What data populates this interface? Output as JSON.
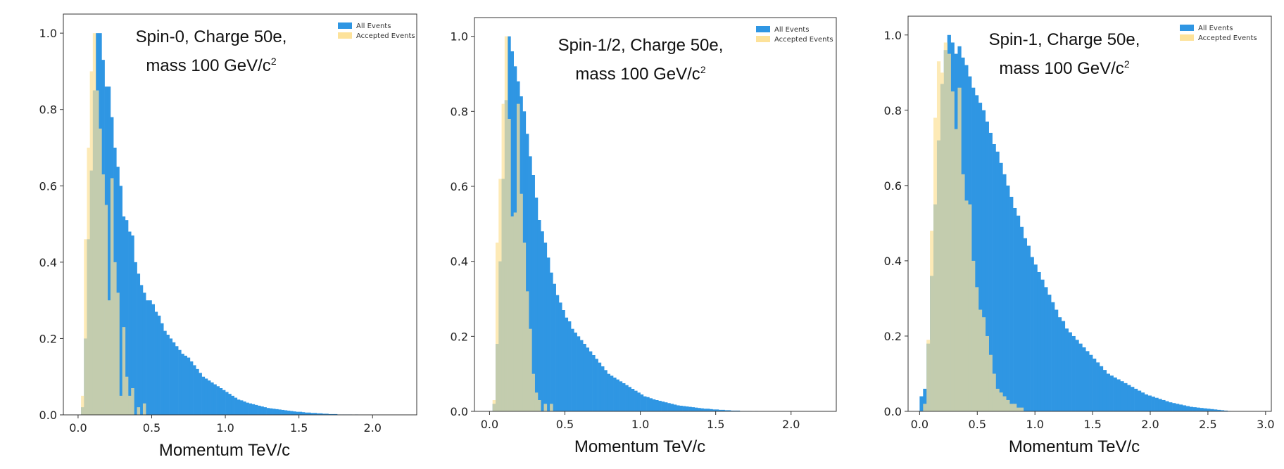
{
  "chart_data": [
    {
      "type": "histogram",
      "annotation_line1": "Spin-0, Charge 50e,",
      "annotation_line2": "mass 100 GeV/c",
      "annotation_sup": "2",
      "xlabel": "Momentum  TeV/c",
      "ylabel": "",
      "xlim": [
        -0.1,
        2.3
      ],
      "ylim": [
        0,
        1.05
      ],
      "xticks": [
        0.0,
        0.5,
        1.0,
        1.5,
        2.0
      ],
      "xtick_labels": [
        "0.0",
        "0.5",
        "1.0",
        "1.5",
        "2.0"
      ],
      "yticks": [
        0.0,
        0.2,
        0.4,
        0.6,
        0.8,
        1.0
      ],
      "ytick_labels": [
        "0.0",
        "0.2",
        "0.4",
        "0.6",
        "0.8",
        "1.0"
      ],
      "legend": [
        "All Events",
        "Accepted Events"
      ],
      "legend_position": "top-right",
      "bin_width": 0.02,
      "series": [
        {
          "name": "All Events",
          "color": "#2f96e3",
          "x_start": 0.0,
          "values": [
            0.0,
            0.02,
            0.2,
            0.46,
            0.64,
            0.85,
            1.0,
            1.0,
            0.93,
            0.86,
            0.86,
            0.78,
            0.7,
            0.65,
            0.6,
            0.52,
            0.51,
            0.48,
            0.47,
            0.4,
            0.37,
            0.34,
            0.32,
            0.3,
            0.3,
            0.29,
            0.27,
            0.26,
            0.24,
            0.22,
            0.21,
            0.2,
            0.19,
            0.18,
            0.17,
            0.16,
            0.155,
            0.15,
            0.14,
            0.13,
            0.12,
            0.11,
            0.1,
            0.095,
            0.09,
            0.085,
            0.08,
            0.075,
            0.07,
            0.065,
            0.06,
            0.055,
            0.05,
            0.045,
            0.04,
            0.038,
            0.035,
            0.032,
            0.03,
            0.028,
            0.026,
            0.024,
            0.022,
            0.02,
            0.018,
            0.017,
            0.016,
            0.015,
            0.014,
            0.013,
            0.012,
            0.011,
            0.01,
            0.009,
            0.008,
            0.008,
            0.007,
            0.006,
            0.006,
            0.005,
            0.005,
            0.004,
            0.004,
            0.003,
            0.003,
            0.002,
            0.002,
            0.002,
            0.001,
            0.001,
            0.001,
            0.001,
            0.001,
            0.0,
            0.001,
            0.0,
            0.0,
            0.0,
            0.0,
            0.0,
            0.0
          ]
        },
        {
          "name": "Accepted Events",
          "color": "#fde29a",
          "x_start": 0.0,
          "values": [
            0.0,
            0.05,
            0.46,
            0.7,
            0.9,
            1.0,
            0.85,
            0.75,
            0.63,
            0.55,
            0.3,
            0.62,
            0.4,
            0.32,
            0.05,
            0.23,
            0.1,
            0.05,
            0.07,
            0.0,
            0.02,
            0.0,
            0.03,
            0.0,
            0.0,
            0.0,
            0.0,
            0.0,
            0.0,
            0.0
          ]
        }
      ]
    },
    {
      "type": "histogram",
      "annotation_line1": "Spin-1/2, Charge 50e,",
      "annotation_line2": "mass 100 GeV/c",
      "annotation_sup": "2",
      "xlabel": "Momentum  TeV/c",
      "ylabel": "",
      "xlim": [
        -0.1,
        2.3
      ],
      "ylim": [
        0,
        1.05
      ],
      "xticks": [
        0.0,
        0.5,
        1.0,
        1.5,
        2.0
      ],
      "xtick_labels": [
        "0.0",
        "0.5",
        "1.0",
        "1.5",
        "2.0"
      ],
      "yticks": [
        0.0,
        0.2,
        0.4,
        0.6,
        0.8,
        1.0
      ],
      "ytick_labels": [
        "0.0",
        "0.2",
        "0.4",
        "0.6",
        "0.8",
        "1.0"
      ],
      "legend": [
        "All Events",
        "Accepted Events"
      ],
      "legend_position": "top-right",
      "bin_width": 0.02,
      "series": [
        {
          "name": "All Events",
          "color": "#2f96e3",
          "x_start": 0.0,
          "values": [
            0.0,
            0.02,
            0.18,
            0.4,
            0.62,
            0.83,
            1.0,
            0.96,
            0.92,
            0.88,
            0.84,
            0.8,
            0.74,
            0.68,
            0.63,
            0.57,
            0.51,
            0.48,
            0.45,
            0.41,
            0.37,
            0.34,
            0.31,
            0.29,
            0.27,
            0.25,
            0.24,
            0.22,
            0.21,
            0.2,
            0.19,
            0.18,
            0.17,
            0.16,
            0.15,
            0.14,
            0.13,
            0.12,
            0.11,
            0.1,
            0.095,
            0.09,
            0.085,
            0.08,
            0.075,
            0.07,
            0.065,
            0.06,
            0.055,
            0.05,
            0.045,
            0.04,
            0.038,
            0.035,
            0.032,
            0.03,
            0.028,
            0.026,
            0.024,
            0.022,
            0.02,
            0.018,
            0.016,
            0.015,
            0.014,
            0.013,
            0.012,
            0.011,
            0.01,
            0.009,
            0.008,
            0.007,
            0.007,
            0.006,
            0.005,
            0.005,
            0.004,
            0.004,
            0.003,
            0.003,
            0.002,
            0.002,
            0.002,
            0.001,
            0.001,
            0.001,
            0.001,
            0.0,
            0.001,
            0.0,
            0.0,
            0.0,
            0.0,
            0.0,
            0.0,
            0.0,
            0.0,
            0.0,
            0.0,
            0.0,
            0.0
          ]
        },
        {
          "name": "Accepted Events",
          "color": "#fde29a",
          "x_start": 0.0,
          "values": [
            0.0,
            0.03,
            0.45,
            0.62,
            0.82,
            1.0,
            0.78,
            0.52,
            0.53,
            0.82,
            0.58,
            0.45,
            0.32,
            0.22,
            0.1,
            0.05,
            0.03,
            0.0,
            0.02,
            0.0,
            0.02,
            0.0,
            0.0,
            0.0,
            0.0,
            0.0,
            0.0,
            0.0,
            0.0,
            0.0
          ]
        }
      ]
    },
    {
      "type": "histogram",
      "annotation_line1": "Spin-1, Charge 50e,",
      "annotation_line2": "mass 100 GeV/c",
      "annotation_sup": "2",
      "xlabel": "Momentum  TeV/c",
      "ylabel": "",
      "xlim": [
        -0.1,
        3.05
      ],
      "ylim": [
        0,
        1.05
      ],
      "xticks": [
        0.0,
        0.5,
        1.0,
        1.5,
        2.0,
        2.5,
        3.0
      ],
      "xtick_labels": [
        "0.0",
        "0.5",
        "1.0",
        "1.5",
        "2.0",
        "2.5",
        "3.0"
      ],
      "yticks": [
        0.0,
        0.2,
        0.4,
        0.6,
        0.8,
        1.0
      ],
      "ytick_labels": [
        "0.0",
        "0.2",
        "0.4",
        "0.6",
        "0.8",
        "1.0"
      ],
      "legend": [
        "All Events",
        "Accepted Events"
      ],
      "legend_position": "top-right",
      "bin_width": 0.03,
      "series": [
        {
          "name": "All Events",
          "color": "#2f96e3",
          "x_start": 0.0,
          "values": [
            0.04,
            0.06,
            0.18,
            0.36,
            0.55,
            0.72,
            0.87,
            0.96,
            1.0,
            0.98,
            0.95,
            0.97,
            0.94,
            0.92,
            0.89,
            0.86,
            0.84,
            0.82,
            0.8,
            0.77,
            0.74,
            0.71,
            0.69,
            0.66,
            0.63,
            0.6,
            0.57,
            0.54,
            0.52,
            0.49,
            0.46,
            0.44,
            0.41,
            0.39,
            0.37,
            0.35,
            0.33,
            0.31,
            0.29,
            0.27,
            0.25,
            0.24,
            0.22,
            0.21,
            0.2,
            0.19,
            0.18,
            0.17,
            0.16,
            0.15,
            0.14,
            0.13,
            0.12,
            0.11,
            0.1,
            0.095,
            0.09,
            0.085,
            0.08,
            0.075,
            0.07,
            0.065,
            0.06,
            0.055,
            0.05,
            0.045,
            0.042,
            0.039,
            0.036,
            0.033,
            0.03,
            0.027,
            0.024,
            0.022,
            0.02,
            0.018,
            0.016,
            0.014,
            0.012,
            0.011,
            0.01,
            0.009,
            0.008,
            0.007,
            0.006,
            0.005,
            0.004,
            0.003,
            0.002,
            0.001
          ]
        },
        {
          "name": "Accepted Events",
          "color": "#fde29a",
          "x_start": 0.0,
          "values": [
            0.0,
            0.02,
            0.19,
            0.48,
            0.78,
            0.93,
            0.9,
            0.98,
            0.95,
            0.85,
            0.75,
            0.86,
            0.63,
            0.56,
            0.55,
            0.4,
            0.33,
            0.27,
            0.25,
            0.2,
            0.15,
            0.1,
            0.06,
            0.05,
            0.04,
            0.03,
            0.02,
            0.02,
            0.01,
            0.01
          ]
        }
      ]
    }
  ]
}
